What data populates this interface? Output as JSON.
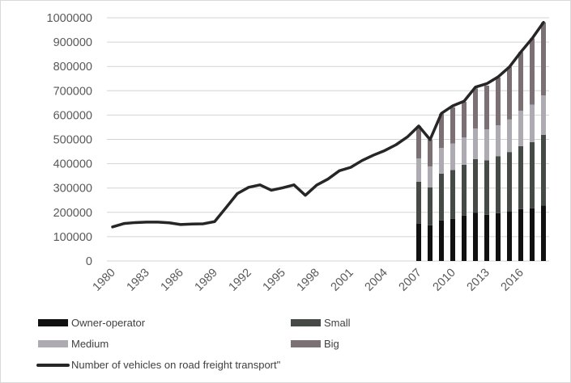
{
  "chart_data": {
    "type": "bar+line",
    "title": "",
    "xlabel": "",
    "ylabel": "",
    "ylim": [
      0,
      1000000
    ],
    "yticks": [
      0,
      100000,
      200000,
      300000,
      400000,
      500000,
      600000,
      700000,
      800000,
      900000,
      1000000
    ],
    "ytick_labels": [
      "0",
      "100000",
      "200000",
      "300000",
      "400000",
      "500000",
      "600000",
      "700000",
      "800000",
      "900000",
      "1000000"
    ],
    "grid": "horizontal",
    "legend_position": "bottom",
    "categories": [
      1980,
      1981,
      1982,
      1983,
      1984,
      1985,
      1986,
      1987,
      1988,
      1989,
      1990,
      1991,
      1992,
      1993,
      1994,
      1995,
      1996,
      1997,
      1998,
      1999,
      2000,
      2001,
      2002,
      2003,
      2004,
      2005,
      2006,
      2007,
      2008,
      2009,
      2010,
      2011,
      2012,
      2013,
      2014,
      2015,
      2016,
      2017,
      2018
    ],
    "xtick_labels": [
      "1980",
      "1983",
      "1986",
      "1989",
      "1992",
      "1995",
      "1998",
      "2001",
      "2004",
      "2007",
      "2010",
      "2013",
      "2016"
    ],
    "bar_years": [
      2007,
      2008,
      2009,
      2010,
      2011,
      2012,
      2013,
      2014,
      2015,
      2016,
      2017,
      2018
    ],
    "stacked_series": [
      {
        "name": "Owner-operator",
        "color": "#111111",
        "values": [
          154000,
          147000,
          167000,
          173000,
          187000,
          199000,
          190000,
          197000,
          204000,
          213000,
          217000,
          228000
        ]
      },
      {
        "name": "Small",
        "color": "#454a47",
        "values": [
          172000,
          156000,
          192000,
          201000,
          209000,
          220000,
          224000,
          234000,
          244000,
          259000,
          272000,
          291000
        ]
      },
      {
        "name": "Medium",
        "color": "#aeaab2",
        "values": [
          96000,
          86000,
          106000,
          109000,
          112000,
          126000,
          127000,
          127000,
          134000,
          146000,
          154000,
          162000
        ]
      },
      {
        "name": "Big",
        "color": "#7b7073",
        "values": [
          133000,
          110000,
          140000,
          149000,
          146000,
          165000,
          180000,
          196000,
          216000,
          241000,
          272000,
          300000
        ]
      }
    ],
    "line_series": {
      "name": "Number of vehicles on road freight transport\"",
      "color": "#262626",
      "values": [
        140000,
        154000,
        158000,
        160000,
        160000,
        157000,
        150000,
        152000,
        153000,
        162000,
        219000,
        277000,
        303000,
        313000,
        291000,
        301000,
        313000,
        270000,
        312000,
        337000,
        371000,
        385000,
        413000,
        435000,
        454000,
        478000,
        510000,
        555000,
        499000,
        607000,
        638000,
        657000,
        715000,
        729000,
        757000,
        798000,
        859000,
        915000,
        981000
      ]
    }
  }
}
